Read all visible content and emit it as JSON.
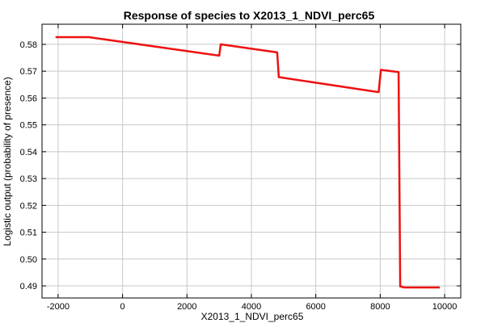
{
  "chart_data": {
    "type": "line",
    "title": "Response of species to X2013_1_NDVI_perc65",
    "xlabel": "X2013_1_NDVI_perc65",
    "ylabel": "Logistic output (probability of presence)",
    "xlim": [
      -2500,
      10500
    ],
    "ylim": [
      0.4855,
      0.5875
    ],
    "xticks": [
      -2000,
      0,
      2000,
      4000,
      6000,
      8000,
      10000
    ],
    "xtick_labels": [
      "-2000",
      "0",
      "2000",
      "4000",
      "6000",
      "8000",
      "10000"
    ],
    "yticks": [
      0.49,
      0.5,
      0.51,
      0.52,
      0.53,
      0.54,
      0.55,
      0.56,
      0.57,
      0.58
    ],
    "ytick_labels": [
      "0.49",
      "0.50",
      "0.51",
      "0.52",
      "0.53",
      "0.54",
      "0.55",
      "0.56",
      "0.57",
      "0.58"
    ],
    "grid": true,
    "series": [
      {
        "color": "#ee1111",
        "x": [
          -2080,
          -1050,
          3000,
          3050,
          4800,
          4850,
          7950,
          8020,
          8570,
          8620,
          8750,
          9850
        ],
        "y": [
          0.5827,
          0.5827,
          0.5758,
          0.58,
          0.577,
          0.5678,
          0.5622,
          0.5705,
          0.5697,
          0.4898,
          0.4894,
          0.4894
        ]
      }
    ]
  }
}
